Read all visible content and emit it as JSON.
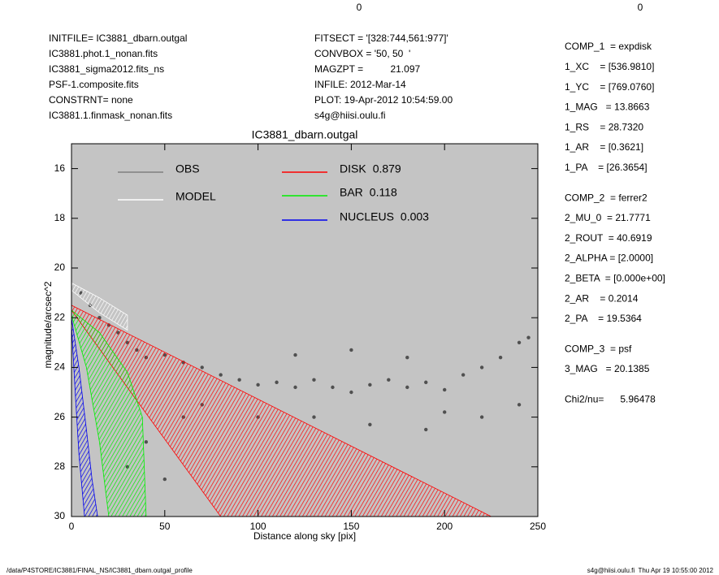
{
  "header_left": [
    "INITFILE= IC3881_dbarn.outgal",
    "IC3881.phot.1_nonan.fits",
    "IC3881_sigma2012.fits_ns",
    "PSF-1.composite.fits",
    "CONSTRNT= none",
    "IC3881.1.finmask_nonan.fits"
  ],
  "header_middle": [
    "FITSECT = '[328:744,561:977]'",
    "CONVBOX = '50, 50  '",
    "MAGZPT =          21.097",
    "INFILE: 2012-Mar-14",
    "PLOT: 19-Apr-2012 10:54:59.00",
    "s4g@hiisi.oulu.fi"
  ],
  "top_numbers": [
    0,
    0
  ],
  "params": [
    [
      "COMP_1  = expdisk",
      "1_XC    = [536.9810]",
      "1_YC    = [769.0760]",
      "1_MAG   = 13.8663",
      "1_RS    = 28.7320",
      "1_AR    = [0.3621]",
      "1_PA    = [26.3654]"
    ],
    [
      "COMP_2  = ferrer2",
      "2_MU_0  = 21.7771",
      "2_ROUT  = 40.6919",
      "2_ALPHA = [2.0000]",
      "2_BETA  = [0.000e+00]",
      "2_AR    = 0.2014",
      "2_PA    = 19.5364"
    ],
    [
      "COMP_3  = psf",
      "3_MAG   = 20.1385"
    ],
    [
      "Chi2/nu=      5.96478"
    ]
  ],
  "footer_left": "/data/P4STORE/IC3881/FINAL_NS/IC3881_dbarn.outgal_profile",
  "footer_right": "s4g@hiisi.oulu.fi  Thu Apr 19 10:55:00 2012",
  "chart_data": {
    "type": "scatter",
    "title": "IC3881_dbarn.outgal",
    "x_label": "Distance along sky [pix]",
    "y_label": "magnitude/arcsec^2",
    "xlim": [
      0,
      250
    ],
    "ylim": [
      30,
      15
    ],
    "xticks": [
      0,
      50,
      100,
      150,
      200,
      250
    ],
    "yticks": [
      16,
      18,
      20,
      22,
      24,
      26,
      28,
      30
    ],
    "series": [
      {
        "name": "OBS",
        "color": "#505050",
        "legend_color": "#808080",
        "style": "points",
        "x": [
          5,
          10,
          15,
          20,
          25,
          30,
          35,
          40,
          50,
          60,
          70,
          80,
          90,
          100,
          110,
          120,
          130,
          140,
          150,
          160,
          170,
          180,
          190,
          200,
          210,
          220,
          230,
          240,
          245,
          120,
          150,
          180,
          200,
          220,
          60,
          40,
          30,
          50,
          100,
          160,
          240,
          70,
          130,
          190
        ],
        "values": [
          21,
          21.5,
          22,
          22.3,
          22.6,
          23,
          23.3,
          23.6,
          23.5,
          23.8,
          24,
          24.3,
          24.5,
          24.7,
          24.6,
          24.8,
          24.5,
          24.8,
          25,
          24.7,
          24.5,
          24.8,
          24.6,
          24.9,
          24.3,
          24,
          23.6,
          23,
          22.8,
          23.5,
          23.3,
          23.6,
          25.8,
          26,
          26,
          27,
          28,
          28.5,
          26,
          26.3,
          25.5,
          25.5,
          26,
          26.5
        ]
      },
      {
        "name": "MODEL",
        "color": "#ffffff",
        "style": "band",
        "upper": {
          "x": [
            0,
            15,
            30
          ],
          "y": [
            20.6,
            21.2,
            21.9
          ]
        },
        "lower": {
          "x": [
            0,
            15,
            30
          ],
          "y": [
            20.9,
            21.8,
            22.5
          ]
        }
      },
      {
        "name": "DISK",
        "fraction": 0.879,
        "color": "#ff0000",
        "style": "band",
        "upper": {
          "x": [
            0,
            225
          ],
          "y": [
            21.5,
            30
          ]
        },
        "lower": {
          "x": [
            0,
            80
          ],
          "y": [
            21.7,
            30
          ]
        }
      },
      {
        "name": "BAR",
        "fraction": 0.118,
        "color": "#00ee00",
        "style": "band",
        "upper": {
          "x": [
            0,
            15,
            30,
            38,
            40
          ],
          "y": [
            21.7,
            22.6,
            24.2,
            26,
            30
          ]
        },
        "lower": {
          "x": [
            0,
            8,
            15,
            20
          ],
          "y": [
            21.9,
            24,
            27,
            30
          ]
        }
      },
      {
        "name": "NUCLEUS",
        "fraction": 0.003,
        "color": "#0000ee",
        "style": "band",
        "upper": {
          "x": [
            0,
            4,
            8,
            11,
            14
          ],
          "y": [
            22,
            24,
            26.5,
            28.5,
            30
          ]
        },
        "lower": {
          "x": [
            0,
            2,
            4,
            7
          ],
          "y": [
            22.3,
            25,
            27.5,
            30
          ]
        }
      }
    ]
  }
}
